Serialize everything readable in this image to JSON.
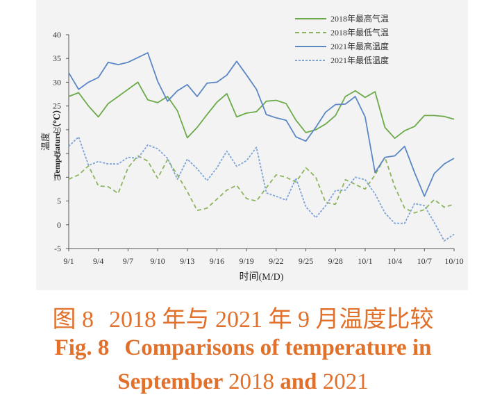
{
  "chart_data": {
    "type": "line",
    "xlabel": "时间(M/D)",
    "ylabel_cn": "温度",
    "ylabel_en": "Temperature（℃）",
    "ylim": [
      -5,
      40
    ],
    "yticks": [
      -5,
      0,
      5,
      10,
      15,
      20,
      25,
      30,
      35,
      40
    ],
    "x_days": [
      "9/1",
      "9/2",
      "9/3",
      "9/4",
      "9/5",
      "9/6",
      "9/7",
      "9/8",
      "9/9",
      "9/10",
      "9/11",
      "9/12",
      "9/13",
      "9/14",
      "9/15",
      "9/16",
      "9/17",
      "9/18",
      "9/19",
      "9/20",
      "9/21",
      "9/22",
      "9/23",
      "9/24",
      "9/25",
      "9/26",
      "9/27",
      "9/28",
      "9/29",
      "9/30",
      "10/1",
      "10/2",
      "10/3",
      "10/4",
      "10/5",
      "10/6",
      "10/7",
      "10/8",
      "10/9",
      "10/10"
    ],
    "xtick_labels": [
      "9/1",
      "9/4",
      "9/7",
      "9/10",
      "9/13",
      "9/16",
      "9/19",
      "9/22",
      "9/25",
      "9/28",
      "10/1",
      "10/4",
      "10/7",
      "10/10"
    ],
    "grid": false,
    "legend_position": "top-right",
    "series": [
      {
        "name": "2018年最高气温",
        "color": "#6aaa48",
        "style": "solid",
        "values": [
          27,
          27.8,
          25,
          22.7,
          25.5,
          27,
          28.5,
          30,
          26.3,
          25.7,
          27,
          24,
          18.3,
          20.5,
          23.2,
          25.8,
          27.6,
          22.7,
          23.5,
          23.8,
          26,
          26.2,
          25.5,
          22,
          19.4,
          20,
          21.2,
          23,
          27,
          28.2,
          26.8,
          28,
          20.5,
          18.2,
          19.8,
          20.7,
          23,
          23,
          22.8,
          22.2
        ]
      },
      {
        "name": "2018年最低气温",
        "color": "#8cb45c",
        "style": "dashed",
        "values": [
          9.6,
          10.5,
          12.4,
          8.2,
          8,
          6.6,
          12,
          14.5,
          13.4,
          9.8,
          13.7,
          10.5,
          7,
          3,
          3.5,
          5.4,
          7.3,
          8.3,
          5.5,
          5,
          7.8,
          10.5,
          10,
          9,
          12,
          10,
          4.7,
          4.3,
          9.5,
          8.5,
          7.5,
          10.5,
          14.2,
          8,
          3.5,
          2.5,
          3.2,
          5.3,
          3.7,
          4.3
        ]
      },
      {
        "name": "2021年最高温度",
        "color": "#5b87c4",
        "style": "solid",
        "values": [
          32,
          28.5,
          30,
          31,
          34.2,
          33.7,
          34.2,
          35.2,
          36.2,
          30.2,
          26,
          28.2,
          29.5,
          27,
          29.8,
          30,
          31.5,
          34.4,
          31.5,
          28.5,
          23.2,
          22.5,
          22,
          18.5,
          17.6,
          20.5,
          23.7,
          25.3,
          25.4,
          27,
          22.7,
          11,
          14.2,
          14.5,
          16.5,
          11,
          6,
          10.8,
          12.8,
          14
        ]
      },
      {
        "name": "2021年最低温度",
        "color": "#7ea3d6",
        "style": "dotted",
        "values": [
          16.5,
          18.5,
          12.5,
          13.3,
          12.8,
          12.8,
          14.2,
          14,
          16.8,
          16,
          14,
          9.6,
          13.8,
          11.8,
          9.3,
          12,
          15.5,
          12.3,
          13.5,
          16.3,
          6.7,
          6,
          5.2,
          9.8,
          3.8,
          1.5,
          4,
          7.2,
          7.3,
          10,
          9.5,
          6.5,
          2.5,
          0.3,
          0.3,
          4.5,
          4,
          0.5,
          -3.4,
          -2
        ]
      }
    ]
  },
  "caption": {
    "cn_fig": "图 8",
    "cn_text": "2018 年与 2021 年 9 月温度比较",
    "en_fig": "Fig. 8",
    "en_line1": "Comparisons of temperature in",
    "en_month": "September",
    "en_year1": "2018",
    "en_and": "and",
    "en_year2": "2021"
  }
}
